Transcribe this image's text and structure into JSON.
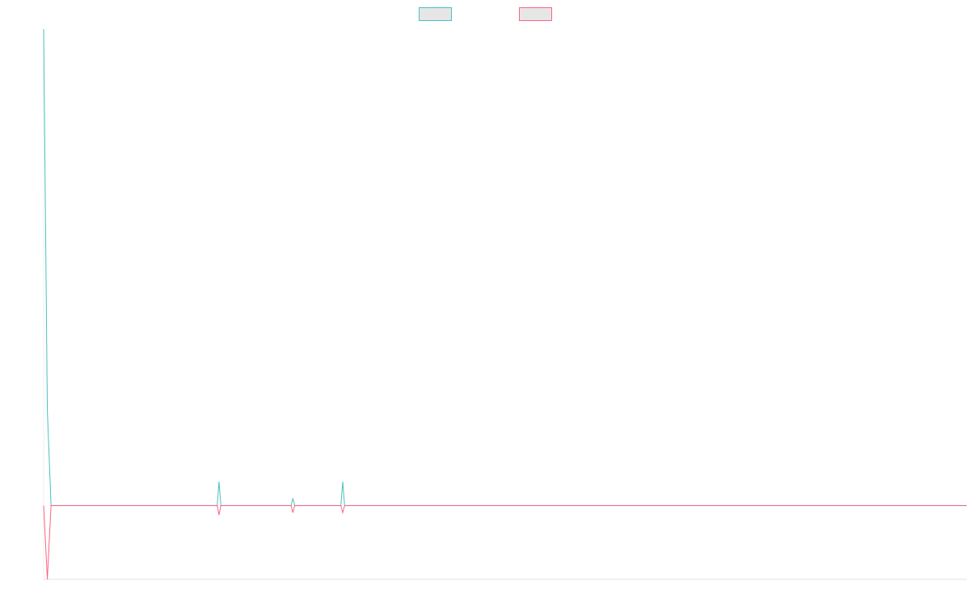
{
  "chart_data": {
    "type": "line",
    "title": "",
    "xlabel": "",
    "ylabel": "",
    "legend_placement": "top-center",
    "grid": false,
    "x_range": [
      0,
      500
    ],
    "y_range": [
      -0.31,
      2.0
    ],
    "series": [
      {
        "color": "#4bc0c0",
        "fill": "#e6e6e6",
        "points": [
          [
            0,
            2.0
          ],
          [
            2,
            0.4
          ],
          [
            4,
            0.0
          ],
          [
            94,
            0.0
          ],
          [
            95,
            0.1
          ],
          [
            96,
            0.0
          ],
          [
            134,
            0.0
          ],
          [
            135,
            0.03
          ],
          [
            136,
            0.0
          ],
          [
            161,
            0.0
          ],
          [
            162,
            0.1
          ],
          [
            163,
            0.0
          ],
          [
            500,
            0.0
          ]
        ]
      },
      {
        "color": "#ff6384",
        "fill": "#e6e6e6",
        "points": [
          [
            0,
            0.0
          ],
          [
            2,
            -0.31
          ],
          [
            4,
            0.0
          ],
          [
            94,
            0.0
          ],
          [
            95,
            -0.04
          ],
          [
            96,
            0.0
          ],
          [
            134,
            0.0
          ],
          [
            135,
            -0.03
          ],
          [
            136,
            0.0
          ],
          [
            161,
            0.0
          ],
          [
            162,
            -0.03
          ],
          [
            163,
            0.0
          ],
          [
            500,
            0.0
          ]
        ]
      }
    ]
  }
}
